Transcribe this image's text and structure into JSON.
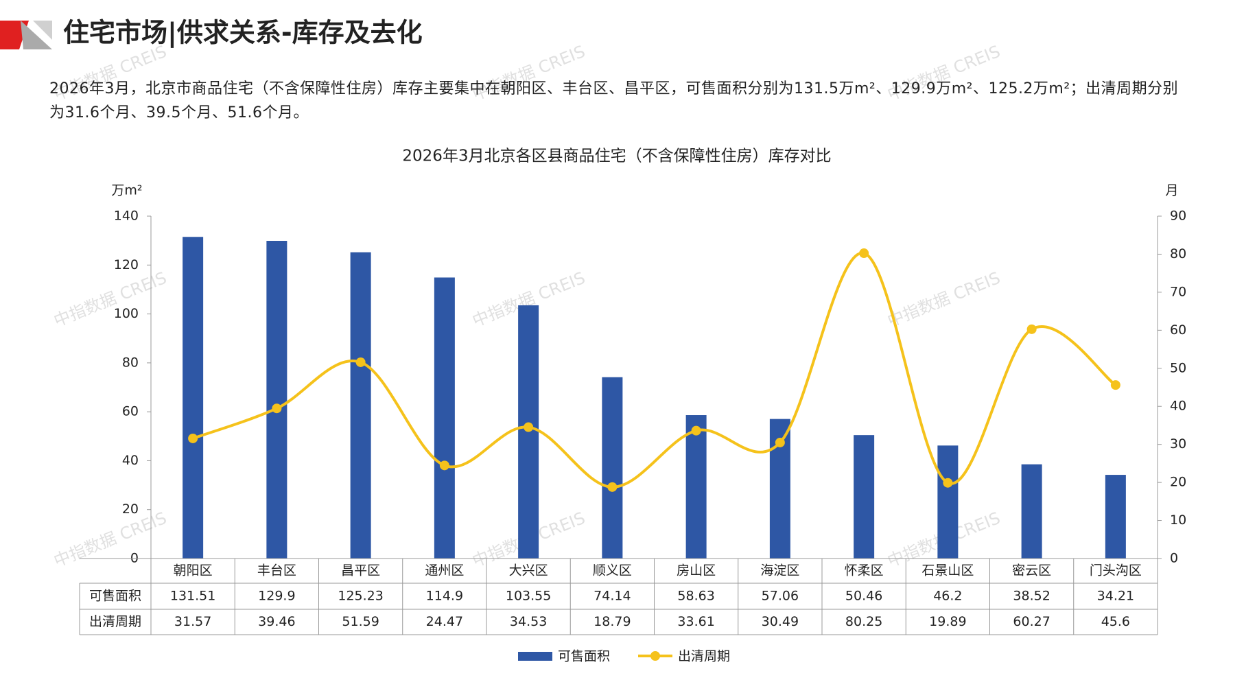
{
  "header": {
    "title": "住宅市场|供求关系-库存及去化"
  },
  "summary": "2026年3月，北京市商品住宅（不含保障性住房）库存主要集中在朝阳区、丰台区、昌平区，可售面积分别为131.5万m²、129.9万m²、125.2万m²；出清周期分别为31.6个月、39.5个月、51.6个月。",
  "watermark": "中指数据 CREIS",
  "chart_data": {
    "type": "bar-line",
    "title": "2026年3月北京各区县商品住宅（不含保障性住房）库存对比",
    "y_label": "万m²",
    "y2_label": "月",
    "categories": [
      "朝阳区",
      "丰台区",
      "昌平区",
      "通州区",
      "大兴区",
      "顺义区",
      "房山区",
      "海淀区",
      "怀柔区",
      "石景山区",
      "密云区",
      "门头沟区"
    ],
    "series": [
      {
        "name": "可售面积",
        "color": "#2e57a5",
        "type": "bar",
        "values": [
          131.51,
          129.9,
          125.23,
          114.9,
          103.55,
          74.14,
          58.63,
          57.06,
          50.46,
          46.2,
          38.52,
          34.21
        ]
      },
      {
        "name": "出清周期",
        "color": "#f5c21b",
        "type": "line",
        "axis": "y2",
        "values": [
          31.57,
          39.46,
          51.59,
          24.47,
          34.53,
          18.79,
          33.61,
          30.49,
          80.25,
          19.89,
          60.27,
          45.6
        ]
      }
    ],
    "ylim": [
      0,
      140
    ],
    "yticks": [
      0,
      20,
      40,
      60,
      80,
      100,
      120,
      140
    ],
    "y2lim": [
      0,
      90
    ],
    "y2ticks": [
      0,
      10,
      20,
      30,
      40,
      50,
      60,
      70,
      80,
      90
    ],
    "legend": "bottom"
  }
}
